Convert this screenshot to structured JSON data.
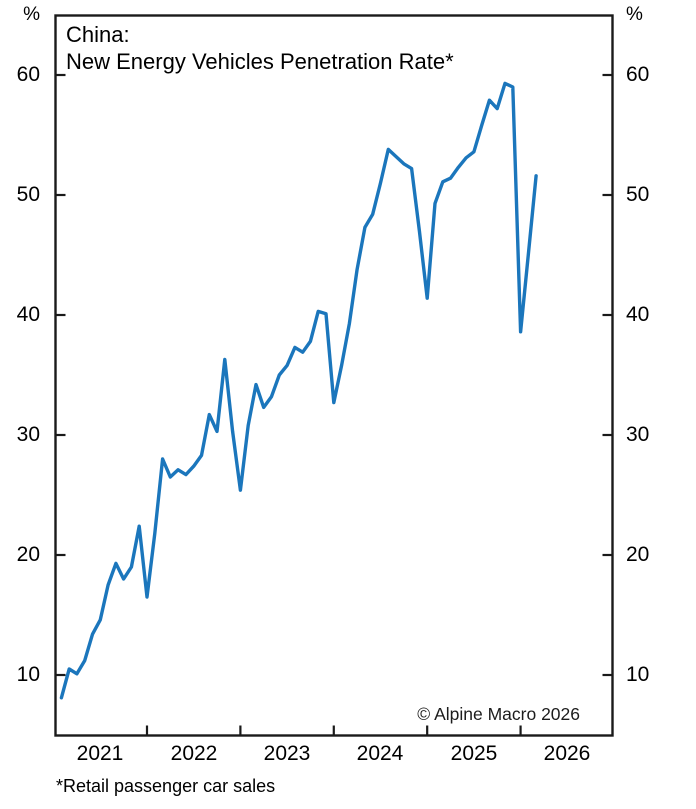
{
  "header": {
    "title_line1": "China:",
    "title_line2": "New Energy Vehicles Penetration Rate*"
  },
  "footnote": "*Retail passenger car sales",
  "copyright": "© Alpine Macro 2026",
  "axes": {
    "y_unit_left": "%",
    "y_unit_right": "%",
    "y_ticks": [
      "60",
      "50",
      "40",
      "30",
      "20",
      "10"
    ],
    "x_year_labels": [
      "2021",
      "2022",
      "2023",
      "2024",
      "2025",
      "2026"
    ],
    "axis_color": "#1a1a1a"
  },
  "chart_data": {
    "type": "line",
    "title": "China: New Energy Vehicles Penetration Rate*",
    "series_name": "NEV penetration rate (retail passenger car sales)",
    "unit": "%",
    "ylim": [
      5,
      65
    ],
    "y_tick_values": [
      10,
      20,
      30,
      40,
      50,
      60
    ],
    "x_axis_tick_years": [
      2022,
      2023,
      2024,
      2025,
      2026
    ],
    "grid": false,
    "legend": "none",
    "line_color": "#1b76bc",
    "x": [
      "2021-02",
      "2021-03",
      "2021-04",
      "2021-05",
      "2021-06",
      "2021-07",
      "2021-08",
      "2021-09",
      "2021-10",
      "2021-11",
      "2021-12",
      "2022-01",
      "2022-02",
      "2022-03",
      "2022-04",
      "2022-05",
      "2022-06",
      "2022-07",
      "2022-08",
      "2022-09",
      "2022-10",
      "2022-11",
      "2022-12",
      "2023-01",
      "2023-02",
      "2023-03",
      "2023-04",
      "2023-05",
      "2023-06",
      "2023-07",
      "2023-08",
      "2023-09",
      "2023-10",
      "2023-11",
      "2023-12",
      "2024-01",
      "2024-02",
      "2024-03",
      "2024-04",
      "2024-05",
      "2024-06",
      "2024-07",
      "2024-08",
      "2024-09",
      "2024-10",
      "2024-11",
      "2024-12",
      "2025-01",
      "2025-02",
      "2025-03",
      "2025-04",
      "2025-05",
      "2025-06",
      "2025-07",
      "2025-08",
      "2025-09",
      "2025-10",
      "2025-11",
      "2025-12",
      "2026-01",
      "2026-02",
      "2026-03"
    ],
    "values": [
      8.1,
      10.5,
      10.1,
      11.2,
      13.4,
      14.6,
      17.5,
      19.3,
      18.0,
      19.0,
      22.4,
      16.5,
      21.8,
      28.0,
      26.5,
      27.1,
      26.7,
      27.4,
      28.3,
      31.7,
      30.3,
      36.3,
      30.3,
      25.4,
      30.8,
      34.2,
      32.3,
      33.2,
      35.0,
      35.8,
      37.3,
      36.9,
      37.8,
      40.3,
      40.1,
      32.7,
      35.8,
      39.3,
      43.8,
      47.3,
      48.4,
      51.0,
      53.8,
      53.2,
      52.6,
      52.2,
      47.0,
      41.4,
      49.3,
      51.1,
      51.4,
      52.3,
      53.1,
      53.6,
      55.8,
      57.9,
      57.2,
      59.3,
      59.0,
      38.6,
      45.1,
      51.6
    ]
  }
}
